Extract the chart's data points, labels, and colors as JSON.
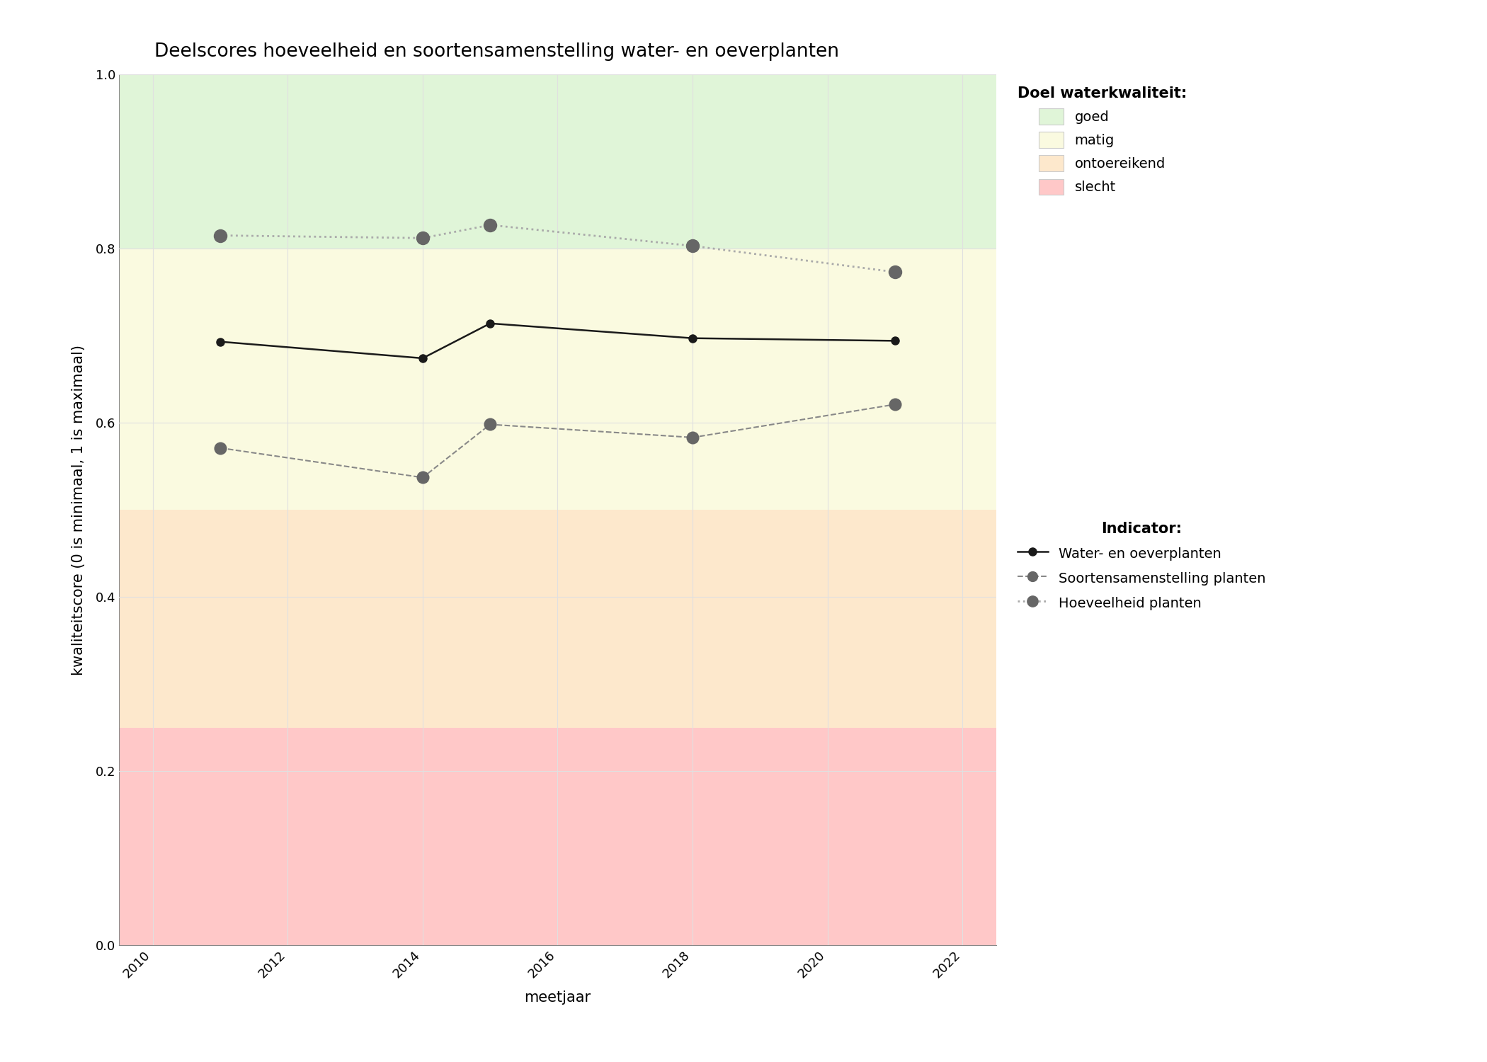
{
  "title": "Deelscores hoeveelheid en soortensamenstelling water- en oeverplanten",
  "xlabel": "meetjaar",
  "ylabel": "kwaliteitscore (0 is minimaal, 1 is maximaal)",
  "xlim": [
    2009.5,
    2022.5
  ],
  "ylim": [
    0.0,
    1.0
  ],
  "xticks": [
    2010,
    2012,
    2014,
    2016,
    2018,
    2020,
    2022
  ],
  "yticks": [
    0.0,
    0.2,
    0.4,
    0.6,
    0.8,
    1.0
  ],
  "zones": [
    {
      "ymin": 0.0,
      "ymax": 0.25,
      "color": "#ffc8c8",
      "label": "slecht"
    },
    {
      "ymin": 0.25,
      "ymax": 0.5,
      "color": "#fde8cc",
      "label": "ontoereikend"
    },
    {
      "ymin": 0.5,
      "ymax": 0.8,
      "color": "#fafae0",
      "label": "matig"
    },
    {
      "ymin": 0.8,
      "ymax": 1.0,
      "color": "#e0f5d8",
      "label": "goed"
    }
  ],
  "grid_color": "#e0e0e0",
  "series": [
    {
      "name": "Water- en oeverplanten",
      "x": [
        2011,
        2014,
        2015,
        2018,
        2021
      ],
      "y": [
        0.693,
        0.674,
        0.714,
        0.697,
        0.694
      ],
      "color": "#1a1a1a",
      "linestyle": "solid",
      "linewidth": 1.8,
      "marker": "o",
      "markersize": 9,
      "marker_facecolor": "#1a1a1a",
      "marker_edgecolor": "#1a1a1a",
      "zorder": 5
    },
    {
      "name": "Soortensamenstelling planten",
      "x": [
        2011,
        2014,
        2015,
        2018,
        2021
      ],
      "y": [
        0.571,
        0.537,
        0.598,
        0.583,
        0.621
      ],
      "color": "#888888",
      "linestyle": "dashed",
      "linewidth": 1.5,
      "marker": "o",
      "markersize": 13,
      "marker_facecolor": "#666666",
      "marker_edgecolor": "#666666",
      "zorder": 4
    },
    {
      "name": "Hoeveelheid planten",
      "x": [
        2011,
        2014,
        2015,
        2018,
        2021
      ],
      "y": [
        0.815,
        0.812,
        0.827,
        0.803,
        0.773
      ],
      "color": "#aaaaaa",
      "linestyle": "dotted",
      "linewidth": 2.0,
      "marker": "o",
      "markersize": 14,
      "marker_facecolor": "#666666",
      "marker_edgecolor": "#666666",
      "zorder": 3
    }
  ],
  "legend_doel_title": "Doel waterkwaliteit:",
  "legend_indicator_title": "Indicator:",
  "legend_doel_items": [
    {
      "label": "goed",
      "color": "#e0f5d8"
    },
    {
      "label": "matig",
      "color": "#fafae0"
    },
    {
      "label": "ontoereikend",
      "color": "#fde8cc"
    },
    {
      "label": "slecht",
      "color": "#ffc8c8"
    }
  ],
  "legend_indicator_items": [
    {
      "label": "Water- en oeverplanten",
      "linestyle": "solid",
      "color": "#1a1a1a",
      "linewidth": 1.8,
      "marker": "o",
      "markersize": 8,
      "marker_facecolor": "#1a1a1a",
      "marker_edgecolor": "#1a1a1a"
    },
    {
      "label": "Soortensamenstelling planten",
      "linestyle": "dashed",
      "color": "#888888",
      "linewidth": 1.5,
      "marker": "o",
      "markersize": 10,
      "marker_facecolor": "#666666",
      "marker_edgecolor": "#666666"
    },
    {
      "label": "Hoeveelheid planten",
      "linestyle": "dotted",
      "color": "#aaaaaa",
      "linewidth": 2.0,
      "marker": "o",
      "markersize": 11,
      "marker_facecolor": "#666666",
      "marker_edgecolor": "#666666"
    }
  ],
  "title_fontsize": 19,
  "axis_label_fontsize": 15,
  "tick_fontsize": 13,
  "legend_fontsize": 14,
  "legend_title_fontsize": 15
}
